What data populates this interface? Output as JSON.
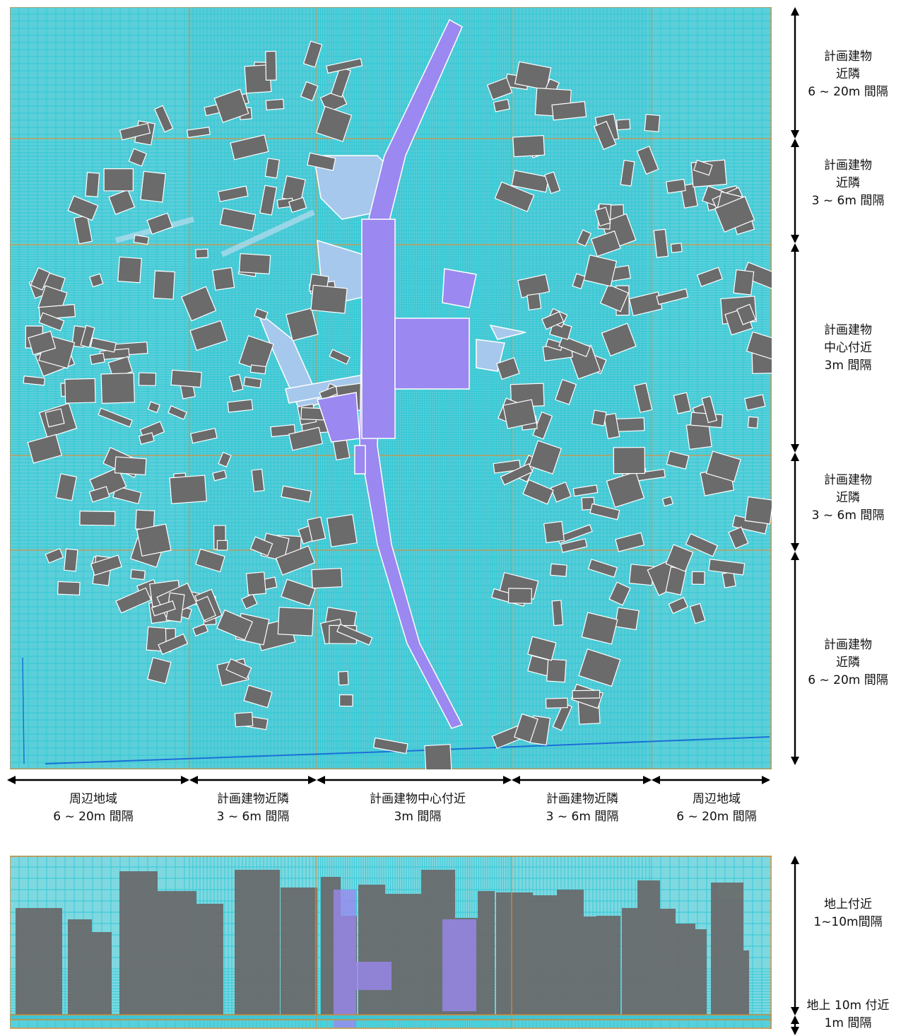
{
  "colors": {
    "grid_fine": "#2fc9d6",
    "grid_coarse": "#f0821e",
    "ground": "#5ccfd9",
    "building": "#6b6b6b",
    "planned_building": "#9b88f0",
    "podium": "#a6c8ec",
    "arrow": "#000000"
  },
  "right_labels": [
    {
      "lines": [
        "計画建物",
        "近隣",
        "6 ~ 20m 間隔"
      ]
    },
    {
      "lines": [
        "計画建物",
        "近隣",
        "3 ~ 6m 間隔"
      ]
    },
    {
      "lines": [
        "計画建物",
        "中心付近",
        "3m 間隔"
      ]
    },
    {
      "lines": [
        "計画建物",
        "近隣",
        "3 ~ 6m 間隔"
      ]
    },
    {
      "lines": [
        "計画建物",
        "近隣",
        "6 ~ 20m 間隔"
      ]
    }
  ],
  "bottom_labels": [
    {
      "lines": [
        "周辺地域",
        "6 ~ 20m 間隔"
      ]
    },
    {
      "lines": [
        "計画建物近隣",
        "3 ~ 6m 間隔"
      ]
    },
    {
      "lines": [
        "計画建物中心付近",
        "3m 間隔"
      ]
    },
    {
      "lines": [
        "計画建物近隣",
        "3 ~ 6m 間隔"
      ]
    },
    {
      "lines": [
        "周辺地域",
        "6 ~ 20m 間隔"
      ]
    }
  ],
  "section_labels": [
    {
      "lines": [
        "地上付近",
        "1~10m間隔"
      ]
    },
    {
      "lines": [
        "地上 10m 付近",
        "1m 間隔"
      ]
    }
  ]
}
